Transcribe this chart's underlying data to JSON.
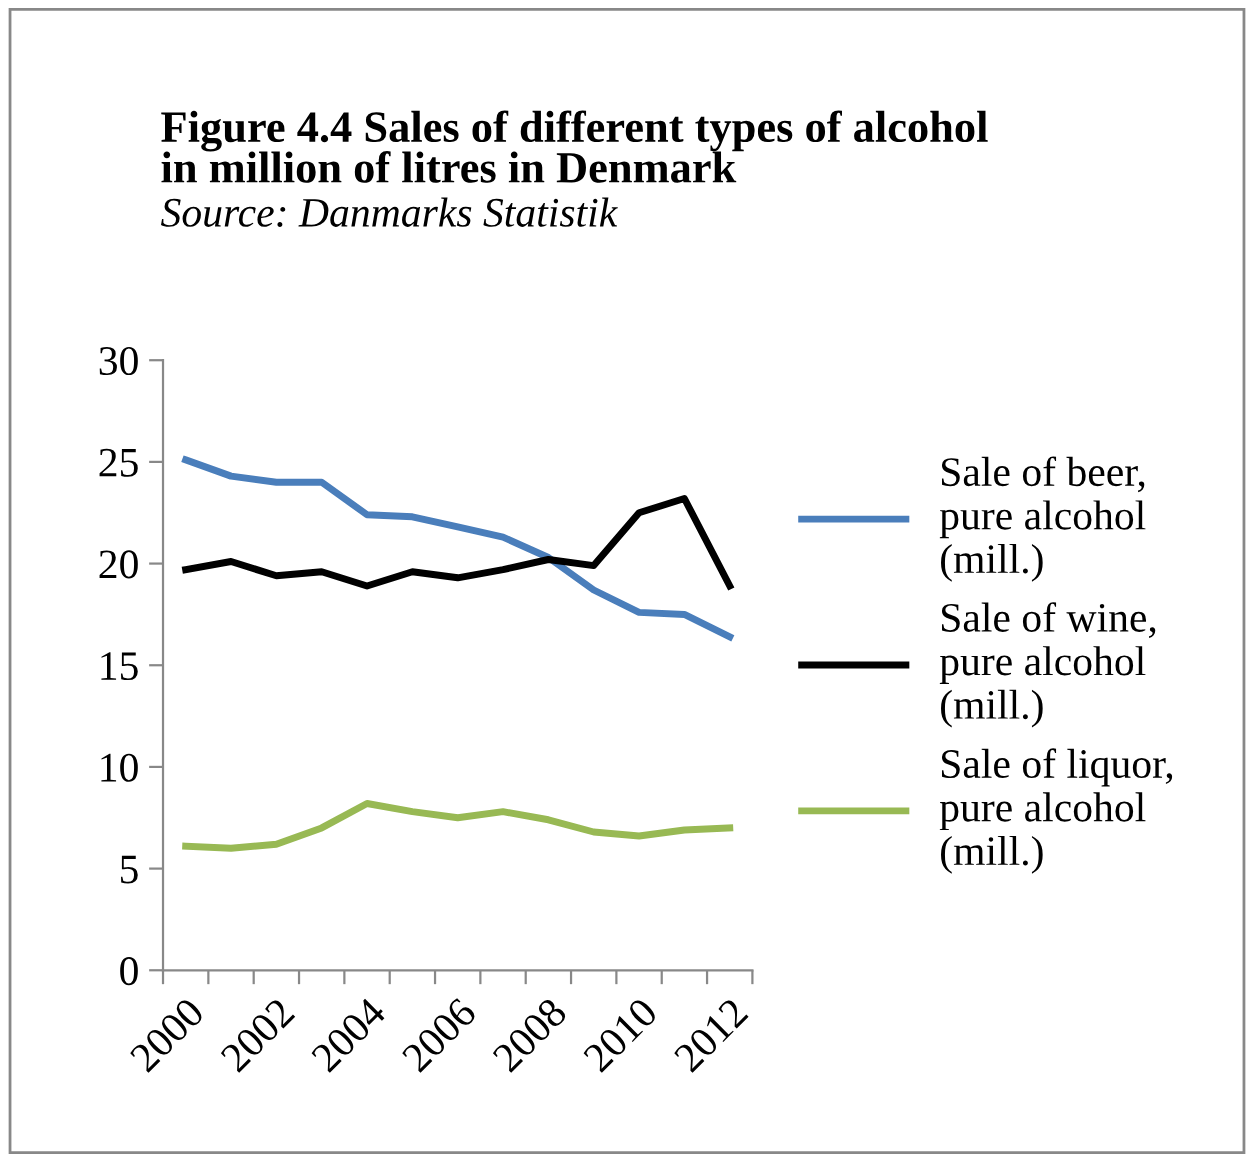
{
  "chart_data": {
    "type": "line",
    "title": "Figure 4.4 Sales of different types of alcohol\nin million of litres in Denmark",
    "annotations": [
      "Source: Danmarks Statistik"
    ],
    "categories": [
      "2000",
      null,
      "2002",
      null,
      "2004",
      null,
      "2006",
      null,
      "2008",
      null,
      "2010",
      null,
      "2012"
    ],
    "series": [
      {
        "name": "Sale of beer,\npure alcohol\n(mill.)",
        "color": "#4a7ebb",
        "values": [
          25.1,
          24.3,
          24.0,
          24.0,
          22.4,
          22.3,
          21.8,
          21.3,
          20.3,
          18.7,
          17.6,
          17.5,
          16.4
        ]
      },
      {
        "name": "Sale of wine,\npure alcohol\n(mill.)",
        "color": "#000000",
        "values": [
          19.7,
          20.1,
          19.4,
          19.6,
          18.9,
          19.6,
          19.3,
          19.7,
          20.2,
          19.9,
          22.5,
          23.2,
          18.9
        ]
      },
      {
        "name": "Sale of liquor,\npure alcohol\n(mill.)",
        "color": "#98b954",
        "values": [
          6.1,
          6.0,
          6.2,
          7.0,
          8.2,
          7.8,
          7.5,
          7.8,
          7.4,
          6.8,
          6.6,
          6.9,
          7.0
        ]
      }
    ],
    "ylim": [
      0,
      30
    ],
    "yticks": [
      0,
      5,
      10,
      15,
      20,
      25,
      30
    ],
    "grid": false,
    "legend": "right",
    "marker": "none",
    "line_style": "solid"
  }
}
